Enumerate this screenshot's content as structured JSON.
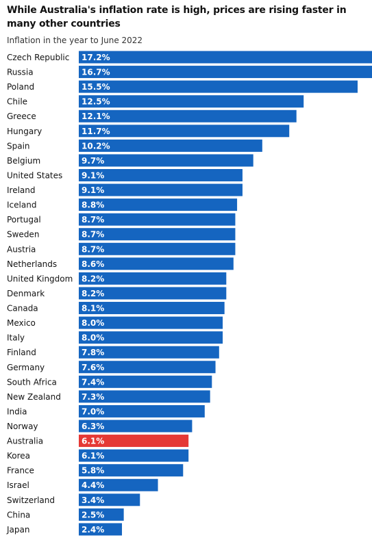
{
  "title": "While Australia's inflation rate is high, prices are rising faster in many other countries",
  "subtitle": "Inflation in the year to June 2022",
  "colors": {
    "bar": "#1565c0",
    "highlight": "#e53935",
    "label_text": "#121212",
    "value_text": "#ffffff"
  },
  "chart_data": {
    "type": "bar",
    "orientation": "horizontal",
    "title": "While Australia's inflation rate is high, prices are rising faster in many other countries",
    "subtitle": "Inflation in the year to June 2022",
    "unit": "%",
    "highlight": "Australia",
    "categories": [
      "Czech Republic",
      "Russia",
      "Poland",
      "Chile",
      "Greece",
      "Hungary",
      "Spain",
      "Belgium",
      "United States",
      "Ireland",
      "Iceland",
      "Portugal",
      "Sweden",
      "Austria",
      "Netherlands",
      "United Kingdom",
      "Denmark",
      "Canada",
      "Mexico",
      "Italy",
      "Finland",
      "Germany",
      "South Africa",
      "New Zealand",
      "India",
      "Norway",
      "Australia",
      "Korea",
      "France",
      "Israel",
      "Switzerland",
      "China",
      "Japan"
    ],
    "values": [
      17.2,
      16.7,
      15.5,
      12.5,
      12.1,
      11.7,
      10.2,
      9.7,
      9.1,
      9.1,
      8.8,
      8.7,
      8.7,
      8.7,
      8.6,
      8.2,
      8.2,
      8.1,
      8.0,
      8.0,
      7.8,
      7.6,
      7.4,
      7.3,
      7.0,
      6.3,
      6.1,
      6.1,
      5.8,
      4.4,
      3.4,
      2.5,
      2.4
    ],
    "value_labels": [
      "17.2%",
      "16.7%",
      "15.5%",
      "12.5%",
      "12.1%",
      "11.7%",
      "10.2%",
      "9.7%",
      "9.1%",
      "9.1%",
      "8.8%",
      "8.7%",
      "8.7%",
      "8.7%",
      "8.6%",
      "8.2%",
      "8.2%",
      "8.1%",
      "8.0%",
      "8.0%",
      "7.8%",
      "7.6%",
      "7.4%",
      "7.3%",
      "7.0%",
      "6.3%",
      "6.1%",
      "6.1%",
      "5.8%",
      "4.4%",
      "3.4%",
      "2.5%",
      "2.4%"
    ],
    "xlim": [
      0,
      15.5
    ],
    "grid": false,
    "legend": "none"
  }
}
